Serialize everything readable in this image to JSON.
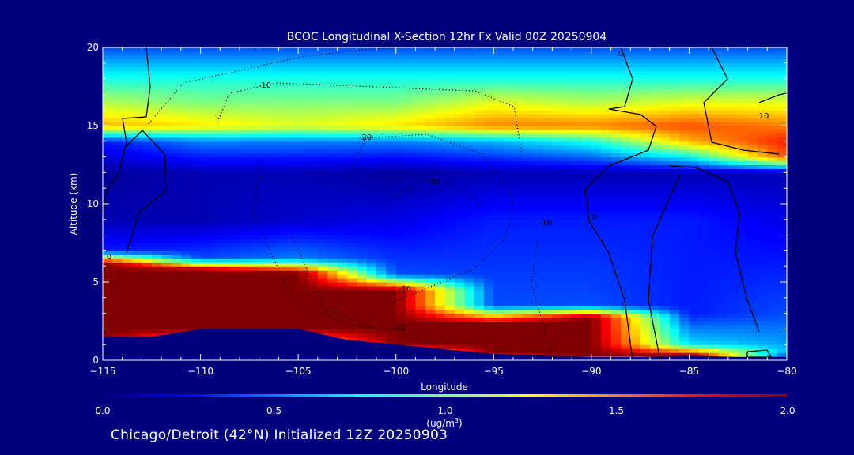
{
  "chart_data": {
    "type": "heatmap",
    "title": "BCOC Longitudinal X-Section 12hr  Fx Valid 00Z 20250904",
    "xlabel": "Longitude",
    "ylabel": "Altitude (km)",
    "xlim": [
      -115,
      -80
    ],
    "ylim": [
      0,
      20
    ],
    "x_ticks": [
      -115,
      -110,
      -105,
      -100,
      -95,
      -90,
      -85,
      -80
    ],
    "x_tick_labels": [
      "−115",
      "−110",
      "−105",
      "−100",
      "−95",
      "−90",
      "−85",
      "−80"
    ],
    "y_ticks": [
      0,
      5,
      10,
      15,
      20
    ],
    "y_tick_labels": [
      "0",
      "5",
      "10",
      "15",
      "20"
    ],
    "colorbar": {
      "range": [
        0.0,
        2.0
      ],
      "ticks": [
        0.0,
        0.5,
        1.0,
        1.5,
        2.0
      ],
      "tick_labels": [
        "0.0",
        "0.5",
        "1.0",
        "1.5",
        "2.0"
      ],
      "label_line1": "(ug/m",
      "label_sup": "3",
      "label_line2": ")",
      "colormap": [
        "#00007f",
        "#0000ff",
        "#0080ff",
        "#00ffff",
        "#80ff80",
        "#ffff00",
        "#ff8000",
        "#ff0000",
        "#7f0000"
      ]
    },
    "longitudes": [
      -115,
      -112.5,
      -110,
      -107.5,
      -105,
      -102.5,
      -100,
      -97.5,
      -95,
      -92.5,
      -90,
      -87.5,
      -85,
      -82.5,
      -80
    ],
    "surface_terrain_km": [
      1.5,
      1.5,
      2.0,
      2.0,
      2.0,
      1.3,
      1.0,
      0.7,
      0.4,
      0.3,
      0.2,
      0.2,
      0.3,
      0.2,
      0.2
    ],
    "profiles": [
      {
        "lon": -115,
        "levels_km": [
          0,
          1.5,
          6.2,
          7,
          9,
          12,
          14,
          15,
          16.5,
          18,
          20
        ],
        "values": [
          0.0,
          2.0,
          2.0,
          0.3,
          0.1,
          0.05,
          0.3,
          1.4,
          1.1,
          0.8,
          0.4
        ]
      },
      {
        "lon": -110,
        "levels_km": [
          0,
          2.0,
          5.8,
          6.5,
          9,
          12,
          14,
          15,
          16.5,
          18,
          20
        ],
        "values": [
          0.0,
          2.0,
          2.0,
          0.4,
          0.1,
          0.1,
          0.5,
          1.3,
          1.0,
          0.8,
          0.4
        ]
      },
      {
        "lon": -105,
        "levels_km": [
          0,
          2.0,
          5.6,
          6.5,
          9,
          12,
          14,
          15,
          16.5,
          18,
          20
        ],
        "values": [
          0.0,
          2.0,
          2.0,
          0.5,
          0.15,
          0.1,
          0.5,
          1.2,
          1.0,
          0.8,
          0.4
        ]
      },
      {
        "lon": -100,
        "levels_km": [
          0,
          1.0,
          4.5,
          5.5,
          9,
          12,
          14,
          15,
          16.5,
          18,
          20
        ],
        "values": [
          0.0,
          2.0,
          2.0,
          0.4,
          0.2,
          0.05,
          0.5,
          1.3,
          1.0,
          0.8,
          0.4
        ]
      },
      {
        "lon": -95,
        "levels_km": [
          0,
          0.4,
          2.4,
          3.5,
          9,
          12,
          14,
          15,
          16.5,
          18,
          20
        ],
        "values": [
          0.0,
          2.0,
          2.0,
          0.4,
          0.3,
          0.1,
          0.6,
          1.5,
          1.2,
          0.8,
          0.4
        ]
      },
      {
        "lon": -90,
        "levels_km": [
          0,
          0.2,
          2.8,
          3.5,
          9,
          12,
          14,
          15,
          16.5,
          18,
          20
        ],
        "values": [
          0.0,
          2.0,
          2.0,
          0.4,
          0.3,
          0.1,
          0.8,
          1.5,
          1.1,
          0.8,
          0.4
        ]
      },
      {
        "lon": -85,
        "levels_km": [
          0,
          0.3,
          1.0,
          3.0,
          9,
          12,
          14,
          15,
          16.5,
          18,
          20
        ],
        "values": [
          0.0,
          2.0,
          0.7,
          0.3,
          0.3,
          0.1,
          1.4,
          1.6,
          1.2,
          0.8,
          0.4
        ]
      },
      {
        "lon": -80,
        "levels_km": [
          0,
          0.2,
          0.6,
          3.0,
          9,
          12,
          13,
          14,
          16.5,
          18,
          20
        ],
        "values": [
          0.0,
          0.3,
          0.6,
          0.4,
          0.2,
          0.1,
          1.6,
          1.7,
          1.2,
          0.8,
          0.4
        ]
      }
    ],
    "contour_labels": [
      "-10",
      "-20",
      "-30",
      "-20",
      "-10",
      "-10",
      "0",
      "0",
      "0",
      "10"
    ],
    "annotations": {
      "subtitle": "Chicago/Detroit (42°N) Initialized 12Z 20250903"
    }
  }
}
